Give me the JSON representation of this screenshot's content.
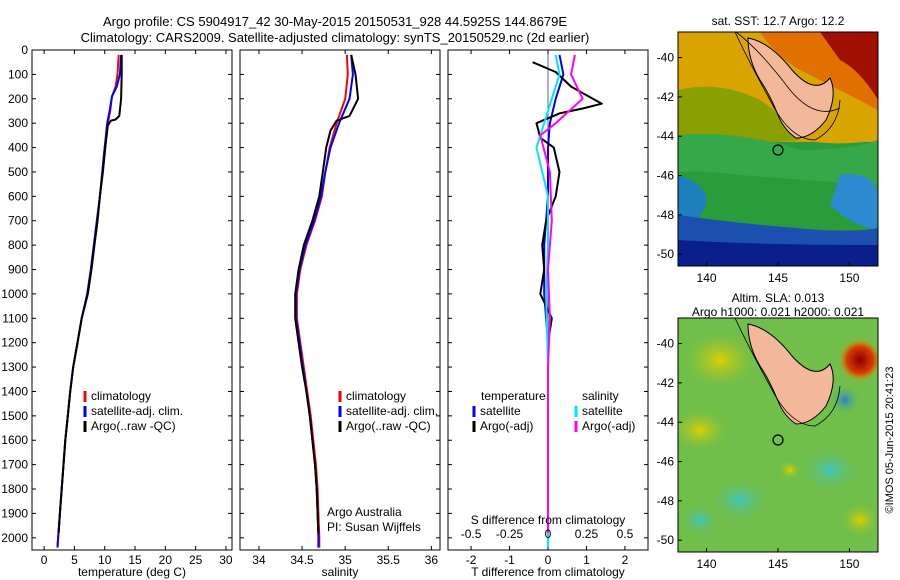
{
  "header": {
    "line1": "Argo profile: CS 5904917_42 30-May-2015 20150531_928 44.5925S 144.8679E",
    "line2": "Climatology: CARS2009. Satellite-adjusted climatology: synTS_20150529.nc (2d earlier)"
  },
  "footer": {
    "credit": "©IMOS 05-Jun-2015 20:41:23"
  },
  "colors": {
    "climatology": "#ff0000",
    "satellite": "#0000ff",
    "argo": "#000000",
    "argo_adj_s": "#ff00ff",
    "satellite_s": "#00e5ff"
  },
  "chart_data": [
    {
      "type": "line",
      "id": "temperature",
      "xlabel": "temperature (deg C)",
      "xlim": [
        -2,
        31
      ],
      "xticks": [
        0,
        5,
        10,
        15,
        20,
        25,
        30
      ],
      "ylim": [
        2050,
        0
      ],
      "yticks": [
        0,
        100,
        200,
        300,
        400,
        500,
        600,
        700,
        800,
        900,
        1000,
        1100,
        1200,
        1300,
        1400,
        1500,
        1600,
        1700,
        1800,
        1900,
        2000
      ],
      "legend": [
        "climatology",
        "satellite-adj. clim.",
        "Argo(..raw -QC)"
      ],
      "series": [
        {
          "name": "climatology",
          "color": "#ff0000",
          "points": [
            [
              12.3,
              20
            ],
            [
              12.1,
              100
            ],
            [
              11.8,
              150
            ],
            [
              11.2,
              190
            ],
            [
              10.9,
              250
            ],
            [
              10.5,
              300
            ],
            [
              10.0,
              400
            ],
            [
              9.6,
              500
            ],
            [
              9.2,
              600
            ],
            [
              8.8,
              700
            ],
            [
              8.3,
              800
            ],
            [
              7.8,
              900
            ],
            [
              7.2,
              1000
            ],
            [
              6.2,
              1100
            ],
            [
              5.5,
              1200
            ],
            [
              4.8,
              1300
            ],
            [
              4.3,
              1400
            ],
            [
              3.9,
              1500
            ],
            [
              3.5,
              1600
            ],
            [
              3.2,
              1700
            ],
            [
              2.9,
              1800
            ],
            [
              2.6,
              1900
            ],
            [
              2.3,
              2000
            ],
            [
              2.2,
              2040
            ]
          ]
        },
        {
          "name": "satellite-adj. clim.",
          "color": "#0000ff",
          "points": [
            [
              12.7,
              20
            ],
            [
              12.5,
              100
            ],
            [
              12.0,
              150
            ],
            [
              11.2,
              190
            ],
            [
              10.8,
              250
            ],
            [
              10.4,
              300
            ],
            [
              10.0,
              400
            ],
            [
              9.6,
              500
            ],
            [
              9.2,
              600
            ],
            [
              8.7,
              700
            ],
            [
              8.2,
              800
            ],
            [
              7.7,
              900
            ],
            [
              7.1,
              1000
            ],
            [
              6.2,
              1100
            ],
            [
              5.5,
              1200
            ],
            [
              4.8,
              1300
            ],
            [
              4.3,
              1400
            ],
            [
              3.9,
              1500
            ],
            [
              3.5,
              1600
            ],
            [
              3.2,
              1700
            ],
            [
              2.9,
              1800
            ],
            [
              2.6,
              1900
            ],
            [
              2.3,
              2000
            ],
            [
              2.2,
              2040
            ]
          ]
        },
        {
          "name": "Argo(..raw -QC)",
          "color": "#000000",
          "points": [
            [
              12.8,
              20
            ],
            [
              12.8,
              100
            ],
            [
              12.7,
              200
            ],
            [
              12.4,
              270
            ],
            [
              11.8,
              285
            ],
            [
              11.0,
              290
            ],
            [
              10.5,
              310
            ],
            [
              10.1,
              400
            ],
            [
              9.7,
              500
            ],
            [
              9.2,
              600
            ],
            [
              8.8,
              700
            ],
            [
              8.3,
              800
            ],
            [
              7.8,
              900
            ],
            [
              7.2,
              1000
            ],
            [
              6.2,
              1100
            ],
            [
              5.5,
              1200
            ],
            [
              4.8,
              1300
            ],
            [
              4.3,
              1400
            ],
            [
              3.9,
              1500
            ],
            [
              3.5,
              1600
            ],
            [
              3.2,
              1700
            ],
            [
              2.9,
              1800
            ],
            [
              2.6,
              1900
            ],
            [
              2.4,
              1980
            ]
          ]
        }
      ]
    },
    {
      "type": "line",
      "id": "salinity",
      "xlabel": "salinity",
      "xlim": [
        33.78,
        36.1
      ],
      "xticks": [
        34,
        34.5,
        35,
        35.5,
        36
      ],
      "ylim": [
        2050,
        0
      ],
      "legend": [
        "climatology",
        "satellite-adj. clim.",
        "Argo(..raw -QC)"
      ],
      "annotation": [
        "Argo Australia",
        "PI: Susan Wijffels"
      ],
      "series": [
        {
          "name": "climatology",
          "color": "#ff0000",
          "points": [
            [
              35.02,
              20
            ],
            [
              35.03,
              100
            ],
            [
              35.0,
              200
            ],
            [
              34.9,
              300
            ],
            [
              34.82,
              400
            ],
            [
              34.77,
              500
            ],
            [
              34.73,
              600
            ],
            [
              34.65,
              700
            ],
            [
              34.55,
              800
            ],
            [
              34.48,
              900
            ],
            [
              34.44,
              1000
            ],
            [
              34.44,
              1100
            ],
            [
              34.48,
              1200
            ],
            [
              34.52,
              1300
            ],
            [
              34.56,
              1400
            ],
            [
              34.6,
              1500
            ],
            [
              34.63,
              1600
            ],
            [
              34.66,
              1700
            ],
            [
              34.68,
              1800
            ],
            [
              34.69,
              1900
            ],
            [
              34.7,
              2000
            ],
            [
              34.7,
              2040
            ]
          ]
        },
        {
          "name": "satellite-adj. clim.",
          "color": "#0000ff",
          "points": [
            [
              35.07,
              20
            ],
            [
              35.09,
              100
            ],
            [
              35.05,
              200
            ],
            [
              34.93,
              300
            ],
            [
              34.83,
              400
            ],
            [
              34.77,
              500
            ],
            [
              34.72,
              600
            ],
            [
              34.64,
              700
            ],
            [
              34.54,
              800
            ],
            [
              34.47,
              900
            ],
            [
              34.43,
              1000
            ],
            [
              34.43,
              1100
            ],
            [
              34.47,
              1200
            ],
            [
              34.51,
              1300
            ],
            [
              34.55,
              1400
            ],
            [
              34.59,
              1500
            ],
            [
              34.62,
              1600
            ],
            [
              34.65,
              1700
            ],
            [
              34.67,
              1800
            ],
            [
              34.68,
              1900
            ],
            [
              34.69,
              2000
            ],
            [
              34.69,
              2040
            ]
          ]
        },
        {
          "name": "Argo(..raw -QC)",
          "color": "#000000",
          "points": [
            [
              35.07,
              20
            ],
            [
              35.12,
              100
            ],
            [
              35.15,
              200
            ],
            [
              35.05,
              270
            ],
            [
              34.9,
              290
            ],
            [
              34.83,
              330
            ],
            [
              34.78,
              400
            ],
            [
              34.74,
              500
            ],
            [
              34.7,
              600
            ],
            [
              34.62,
              700
            ],
            [
              34.52,
              800
            ],
            [
              34.46,
              900
            ],
            [
              34.42,
              1000
            ],
            [
              34.42,
              1100
            ],
            [
              34.46,
              1200
            ],
            [
              34.5,
              1300
            ],
            [
              34.55,
              1400
            ],
            [
              34.59,
              1500
            ],
            [
              34.62,
              1600
            ],
            [
              34.65,
              1700
            ],
            [
              34.67,
              1800
            ],
            [
              34.68,
              1900
            ],
            [
              34.69,
              1980
            ]
          ]
        }
      ]
    },
    {
      "type": "line",
      "id": "difference",
      "xlabel": "T difference from climatology",
      "xlim": [
        -2.6,
        2.6
      ],
      "xticks": [
        -2,
        -1,
        0,
        1,
        2
      ],
      "top_label": "S difference from climatology",
      "top_ticks": [
        "-0.5",
        "-0.25",
        "0",
        "0.25",
        "0.5"
      ],
      "top_tick_values": [
        -2,
        -1,
        0,
        1,
        2
      ],
      "ylim": [
        2050,
        0
      ],
      "legend": {
        "temperature_title": "temperature",
        "salinity_title": "salinity",
        "items": [
          "satellite",
          "Argo(-adj)",
          "satellite",
          "Argo(-adj)"
        ]
      },
      "series": [
        {
          "name": "T satellite",
          "color": "#0000ff",
          "points": [
            [
              0.3,
              20
            ],
            [
              0.4,
              100
            ],
            [
              0.2,
              200
            ],
            [
              0.05,
              300
            ],
            [
              0.0,
              400
            ],
            [
              0.0,
              600
            ],
            [
              -0.1,
              800
            ],
            [
              -0.1,
              1000
            ],
            [
              0.0,
              1200
            ],
            [
              0.0,
              1500
            ],
            [
              0.0,
              2040
            ]
          ]
        },
        {
          "name": "T Argo(-adj)",
          "color": "#000000",
          "points": [
            [
              -0.4,
              50
            ],
            [
              0.2,
              90
            ],
            [
              0.6,
              150
            ],
            [
              1.4,
              220
            ],
            [
              0.9,
              240
            ],
            [
              0.3,
              260
            ],
            [
              -0.3,
              300
            ],
            [
              -0.2,
              360
            ],
            [
              0.15,
              400
            ],
            [
              0.3,
              500
            ],
            [
              0.2,
              600
            ],
            [
              -0.05,
              700
            ],
            [
              -0.15,
              800
            ],
            [
              -0.1,
              900
            ],
            [
              -0.2,
              1000
            ],
            [
              -0.05,
              1050
            ],
            [
              0.1,
              1100
            ],
            [
              0.0,
              1200
            ],
            [
              0.0,
              1500
            ],
            [
              0.0,
              1980
            ]
          ]
        },
        {
          "name": "S satellite",
          "color": "#00e5ff",
          "points": [
            [
              0.2,
              20
            ],
            [
              0.3,
              100
            ],
            [
              0.1,
              200
            ],
            [
              -0.1,
              300
            ],
            [
              -0.3,
              400
            ],
            [
              0.0,
              600
            ],
            [
              0.0,
              800
            ],
            [
              -0.05,
              1000
            ],
            [
              0.0,
              1300
            ],
            [
              0.0,
              2040
            ]
          ]
        },
        {
          "name": "S Argo(-adj)",
          "color": "#ff00ff",
          "points": [
            [
              0.7,
              20
            ],
            [
              0.6,
              100
            ],
            [
              0.9,
              200
            ],
            [
              0.2,
              300
            ],
            [
              -0.2,
              350
            ],
            [
              0.05,
              500
            ],
            [
              0.1,
              700
            ],
            [
              0.0,
              900
            ],
            [
              0.05,
              1100
            ],
            [
              0.0,
              1300
            ],
            [
              0.0,
              1980
            ]
          ]
        }
      ]
    },
    {
      "type": "heatmap",
      "id": "sst_map",
      "title": "sat. SST: 12.7  Argo: 12.2",
      "xticks": [
        140,
        145,
        150
      ],
      "yticks": [
        -40,
        -42,
        -44,
        -46,
        -48,
        -50
      ],
      "xlim": [
        138,
        152
      ],
      "ylim": [
        -50.6,
        -38.7
      ],
      "argo_position": [
        144.87,
        -44.59
      ]
    },
    {
      "type": "heatmap",
      "id": "sla_map",
      "title": "Altim. SLA: 0.013",
      "subtitle": "Argo h1000: 0.021 h2000: 0.021",
      "xticks": [
        140,
        145,
        150
      ],
      "yticks": [
        -40,
        -42,
        -44,
        -46,
        -48,
        -50
      ],
      "xlim": [
        138,
        152
      ],
      "ylim": [
        -50.6,
        -38.7
      ],
      "argo_position": [
        144.87,
        -44.59
      ]
    }
  ]
}
